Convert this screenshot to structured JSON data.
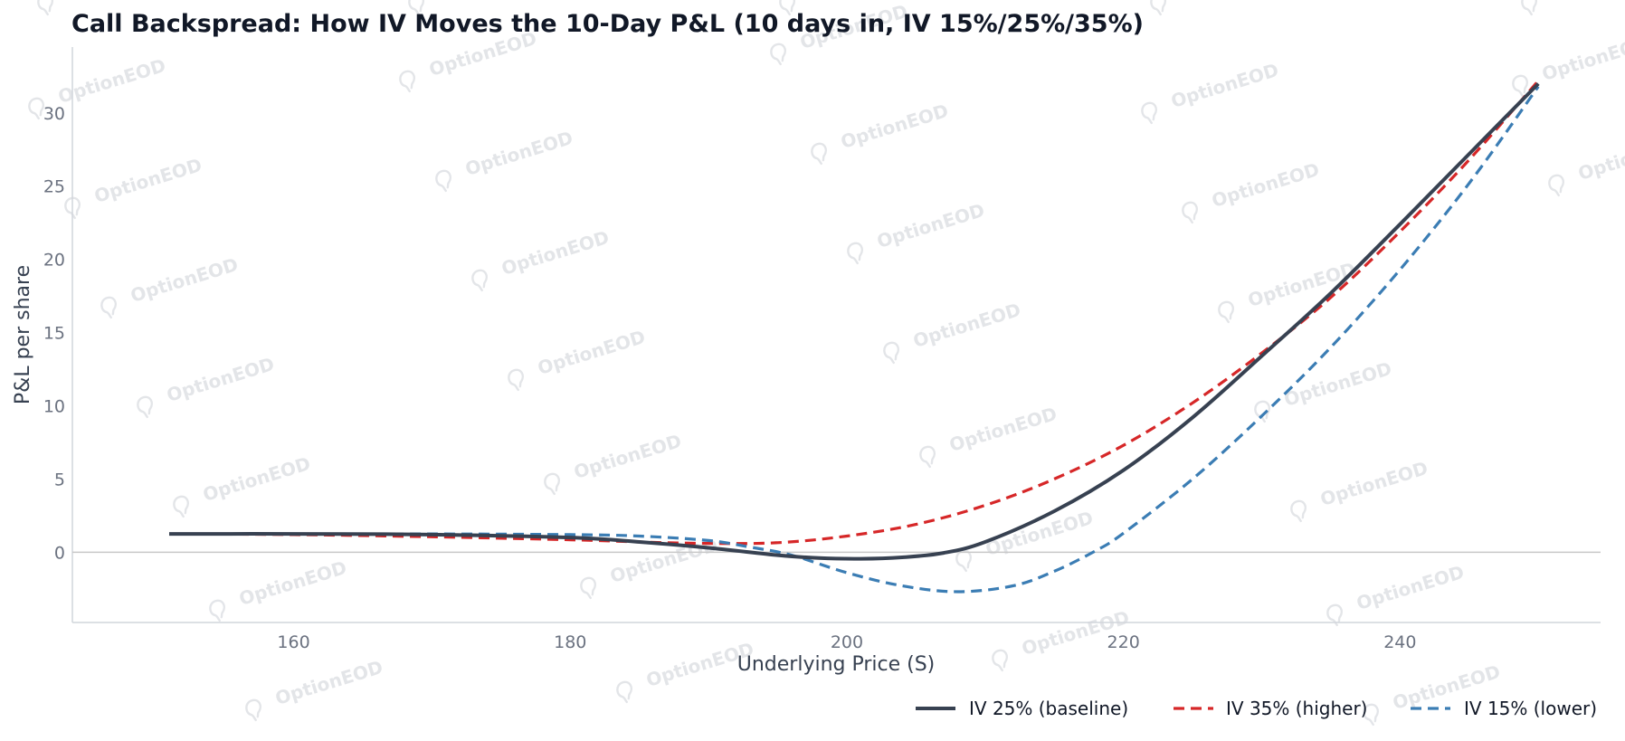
{
  "watermark": "OptionEOD",
  "chart_data": {
    "type": "line",
    "title": "Call Backspread: How IV Moves the 10-Day P&L (10 days in, IV 15%/25%/35%)",
    "xlabel": "Underlying Price (S)",
    "ylabel": "P&L per share",
    "xlim": [
      144,
      254.5
    ],
    "ylim": [
      -4.8,
      34.5
    ],
    "xticks": [
      160,
      180,
      200,
      220,
      240
    ],
    "yticks": [
      0,
      5,
      10,
      15,
      20,
      25,
      30
    ],
    "zero_line": true,
    "grid": false,
    "legend": "bottom-right",
    "series": [
      {
        "name": "IV 25% (baseline)",
        "color": "#374151",
        "style": "solid",
        "x": [
          151,
          160,
          170,
          180,
          185,
          190,
          195,
          198,
          201,
          204,
          207,
          210,
          215,
          220,
          225,
          230,
          235,
          240,
          245,
          250
        ],
        "y": [
          1.25,
          1.25,
          1.2,
          1.0,
          0.7,
          0.3,
          -0.2,
          -0.4,
          -0.45,
          -0.35,
          -0.05,
          0.7,
          2.8,
          5.6,
          9.2,
          13.4,
          17.7,
          22.4,
          27.2,
          32.0
        ]
      },
      {
        "name": "IV 35% (higher)",
        "color": "#d62728",
        "style": "dashed",
        "x": [
          151,
          160,
          170,
          180,
          185,
          190,
          195,
          200,
          205,
          210,
          215,
          220,
          225,
          230,
          235,
          240,
          245,
          250
        ],
        "y": [
          1.25,
          1.2,
          1.05,
          0.85,
          0.7,
          0.6,
          0.65,
          1.1,
          1.9,
          3.2,
          5.0,
          7.3,
          10.2,
          13.6,
          17.4,
          21.9,
          26.8,
          32.2
        ]
      },
      {
        "name": "IV 15% (lower)",
        "color": "#3b7db4",
        "style": "dashed",
        "x": [
          151,
          160,
          170,
          180,
          185,
          190,
          193,
          196,
          200,
          204,
          208,
          212,
          215,
          218,
          220,
          225,
          230,
          235,
          240,
          245,
          250
        ],
        "y": [
          1.25,
          1.25,
          1.25,
          1.2,
          1.1,
          0.8,
          0.35,
          -0.2,
          -1.4,
          -2.3,
          -2.7,
          -2.3,
          -1.3,
          0.1,
          1.3,
          5.0,
          9.3,
          14.0,
          19.3,
          25.2,
          31.8
        ]
      }
    ]
  }
}
